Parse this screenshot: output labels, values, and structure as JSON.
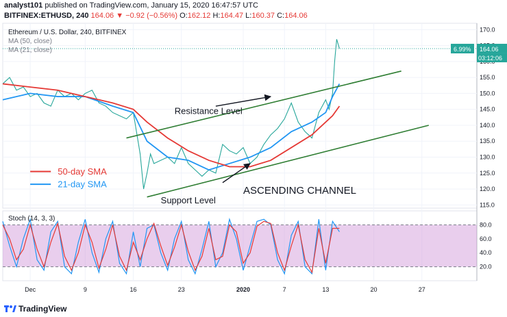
{
  "header": {
    "author": "analyst101",
    "published_text": "published on TradingView.com, January 15, 2020 16:47:57 UTC",
    "symbol": "BITFINEX:ETHUSD, 240",
    "price": "164.06",
    "change": "−0.92 (−0.56%)",
    "open_label": "O:",
    "open": "162.12",
    "high_label": "H:",
    "high": "164.47",
    "low_label": "L:",
    "low": "160.37",
    "close_label": "C:",
    "close": "164.06"
  },
  "chart_data": [
    {
      "type": "line",
      "title": "Ethereum / U.S. Dollar, 240, BITFINEX",
      "indicator_labels": [
        "MA (50, close)",
        "MA (21, close)"
      ],
      "ylim": [
        114,
        172
      ],
      "yticks": [
        115.0,
        120.0,
        125.0,
        130.0,
        135.0,
        140.0,
        145.0,
        150.0,
        155.0,
        160.0,
        165.0,
        170.0
      ],
      "x_labels": [
        "Dec",
        "9",
        "16",
        "23",
        "2020",
        "7",
        "13",
        "20",
        "27"
      ],
      "x_label_days": [
        1,
        9,
        16,
        23,
        32,
        38,
        44,
        51,
        58
      ],
      "xlim_days": [
        -3,
        66
      ],
      "price_label": "164.06",
      "price_change_label": "6.99%",
      "countdown_label": "03:12:06",
      "current_price": 164.06,
      "series": [
        {
          "name": "Price",
          "color": "#26a69a",
          "x": [
            -3,
            -2,
            -1,
            0,
            1,
            2,
            3,
            4,
            5,
            6,
            7,
            8,
            9,
            10,
            11,
            12,
            13,
            14,
            15,
            16,
            17,
            17.5,
            18,
            18.5,
            19,
            20,
            21,
            22,
            23,
            24,
            25,
            26,
            27,
            28,
            29,
            30,
            31,
            32,
            33,
            34,
            35,
            36,
            37,
            38,
            39,
            40,
            41,
            42,
            43,
            44,
            44.5,
            45,
            45.3,
            45.6,
            46
          ],
          "y": [
            153,
            155,
            151,
            152,
            149,
            150,
            147,
            146,
            151,
            149,
            150,
            148,
            150,
            151,
            147,
            146,
            144,
            143,
            142,
            144,
            131,
            120,
            125,
            131,
            128,
            129,
            130,
            128,
            133,
            128,
            126,
            124,
            126,
            125,
            134,
            132,
            131,
            133,
            128,
            130,
            134,
            137,
            139,
            142,
            147,
            141,
            138,
            136,
            144,
            148,
            145,
            150,
            160,
            167,
            164.06
          ]
        },
        {
          "name": "21-day SMA",
          "color": "#2196f3",
          "x": [
            -3,
            1,
            5,
            9,
            13,
            16,
            18,
            21,
            24,
            27,
            30,
            33,
            36,
            39,
            42,
            44,
            45,
            46
          ],
          "y": [
            148,
            150,
            149,
            149,
            146,
            144,
            135,
            130,
            129,
            126,
            128,
            130,
            133,
            138,
            141,
            144,
            149,
            153
          ]
        },
        {
          "name": "50-day SMA",
          "color": "#e53935",
          "x": [
            -3,
            1,
            5,
            9,
            13,
            16,
            18,
            21,
            24,
            27,
            30,
            33,
            36,
            39,
            42,
            44,
            45,
            46
          ],
          "y": [
            153,
            152,
            151,
            149,
            147,
            145,
            141,
            136,
            132,
            129,
            127,
            127,
            129,
            133,
            137,
            141,
            143,
            146
          ]
        }
      ],
      "trendlines": [
        {
          "name": "resistance-line",
          "x": [
            15,
            55
          ],
          "y": [
            136,
            157
          ]
        },
        {
          "name": "support-line",
          "x": [
            18,
            59
          ],
          "y": [
            117.5,
            140
          ]
        }
      ],
      "annotations": [
        {
          "name": "resistance-level-label",
          "text": "Resistance Level",
          "x": 22,
          "y": 143.5
        },
        {
          "name": "support-level-label",
          "text": "Support  Level",
          "x": 20,
          "y": 115.5
        },
        {
          "name": "ascending-channel-label",
          "text": "ASCENDING CHANNEL",
          "x": 32,
          "y": 118.5
        },
        {
          "name": "legend-50-label",
          "text": "50-day SMA",
          "x": 5,
          "y": 124.5,
          "color": "#e53935"
        },
        {
          "name": "legend-21-label",
          "text": "21-day SMA",
          "x": 5,
          "y": 120.5,
          "color": "#2196f3"
        }
      ],
      "arrows": [
        {
          "name": "resistance-arrow",
          "from": [
            28,
            146
          ],
          "to": [
            36,
            149
          ]
        },
        {
          "name": "support-arrow",
          "from": [
            29,
            122
          ],
          "to": [
            33,
            128
          ]
        }
      ],
      "legend_swatches": [
        {
          "name": "legend-50-swatch",
          "x": [
            1,
            4
          ],
          "y": 125.5,
          "color": "#e53935"
        },
        {
          "name": "legend-21-swatch",
          "x": [
            1,
            4
          ],
          "y": 121.5,
          "color": "#2196f3"
        }
      ]
    },
    {
      "type": "line",
      "title": "Stoch (14, 3, 3)",
      "ylim": [
        0,
        100
      ],
      "yticks": [
        20.0,
        40.0,
        60.0,
        80.0
      ],
      "bands": [
        20,
        80
      ],
      "band_color": "#ce93d8",
      "series": [
        {
          "name": "%K",
          "color": "#2196f3",
          "x": [
            -3,
            -2,
            -1,
            0,
            1,
            2,
            3,
            4,
            5,
            6,
            7,
            8,
            9,
            10,
            11,
            12,
            13,
            14,
            15,
            16,
            17,
            18,
            19,
            20,
            21,
            22,
            23,
            24,
            25,
            26,
            27,
            28,
            29,
            30,
            31,
            32,
            33,
            34,
            35,
            36,
            37,
            38,
            39,
            40,
            41,
            42,
            43,
            44,
            45,
            46
          ],
          "y": [
            85,
            50,
            20,
            60,
            88,
            30,
            15,
            70,
            85,
            20,
            10,
            55,
            88,
            40,
            12,
            60,
            85,
            25,
            10,
            70,
            20,
            75,
            80,
            40,
            15,
            60,
            85,
            30,
            10,
            45,
            85,
            20,
            40,
            88,
            60,
            15,
            50,
            85,
            88,
            80,
            30,
            10,
            65,
            85,
            20,
            10,
            88,
            15,
            85,
            70
          ]
        },
        {
          "name": "%D",
          "color": "#e53935",
          "x": [
            -3,
            -2,
            -1,
            0,
            1,
            2,
            3,
            4,
            5,
            6,
            7,
            8,
            9,
            10,
            11,
            12,
            13,
            14,
            15,
            16,
            17,
            18,
            19,
            20,
            21,
            22,
            23,
            24,
            25,
            26,
            27,
            28,
            29,
            30,
            31,
            32,
            33,
            34,
            35,
            36,
            37,
            38,
            39,
            40,
            41,
            42,
            43,
            44,
            45,
            46
          ],
          "y": [
            80,
            60,
            30,
            45,
            80,
            45,
            20,
            55,
            82,
            35,
            15,
            40,
            80,
            55,
            18,
            45,
            80,
            35,
            15,
            55,
            30,
            60,
            82,
            50,
            22,
            48,
            80,
            42,
            15,
            35,
            75,
            30,
            35,
            80,
            70,
            25,
            40,
            78,
            85,
            82,
            40,
            15,
            50,
            80,
            30,
            12,
            75,
            25,
            75,
            75
          ]
        }
      ]
    }
  ],
  "footer": {
    "brand": "TradingView"
  }
}
